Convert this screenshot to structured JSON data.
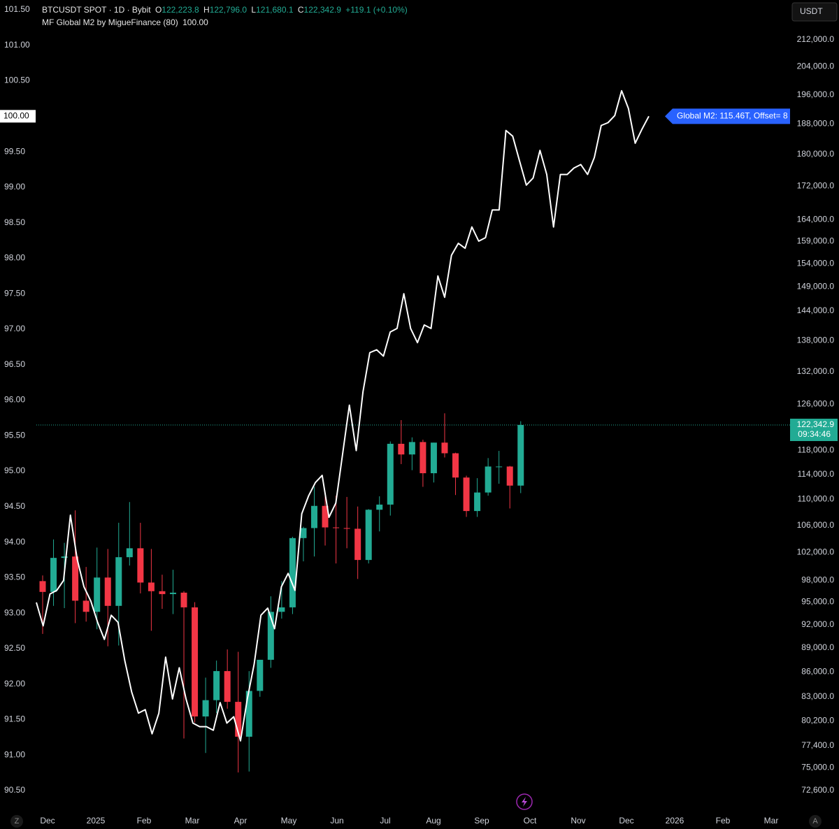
{
  "header": {
    "symbol": "BTCUSDT SPOT · 1D · Bybit",
    "o_key": "O",
    "o": "122,223.8",
    "h_key": "H",
    "h": "122,796.0",
    "l_key": "L",
    "l": "121,680.1",
    "c_key": "C",
    "c": "122,342.9",
    "change": "+119.1 (+0.10%)",
    "currency": "USDT",
    "countdown": "09:34:46",
    "callout": "Global M2: 115.46T, Offset= 8",
    "left_button": "Z",
    "right_button": "A"
  },
  "chart_data": {
    "type": "candlestick",
    "last_value_label": "100.00",
    "last_price_label": "122,342.9",
    "xticks": [
      "Dec",
      "2025",
      "Feb",
      "Mar",
      "Apr",
      "May",
      "Jun",
      "Jul",
      "Aug",
      "Sep",
      "Oct",
      "Nov",
      "Dec",
      "2026",
      "Feb",
      "Mar"
    ],
    "candles": {
      "up_color": "#22ab94",
      "down_color": "#f23645",
      "open": [
        97900,
        96400,
        101200,
        101400,
        95200,
        93700,
        98400,
        94500,
        101300,
        102600,
        97700,
        96500,
        96100,
        96300,
        94300,
        80700,
        82600,
        86100,
        82400,
        78400,
        83700,
        87500,
        93700,
        94300,
        104100,
        105600,
        109000,
        105700,
        105600,
        105500,
        100900,
        108400,
        109200,
        119100,
        117300,
        119400,
        114200,
        119300,
        117500,
        113500,
        108200,
        111100,
        115300,
        115300,
        112200
      ],
      "high": [
        98700,
        103900,
        103400,
        108300,
        99900,
        102700,
        102500,
        106400,
        109600,
        106400,
        102500,
        98800,
        99500,
        96500,
        95000,
        85300,
        87400,
        88800,
        88500,
        86100,
        87500,
        95800,
        97900,
        104300,
        105800,
        112000,
        110700,
        110600,
        110400,
        108900,
        108500,
        110500,
        119500,
        123200,
        120200,
        119800,
        119300,
        124400,
        117600,
        113800,
        113400,
        116700,
        117900,
        115400,
        123000
      ],
      "low": [
        90800,
        94500,
        94200,
        92200,
        92400,
        91400,
        89200,
        89300,
        100100,
        96200,
        91200,
        94100,
        93400,
        78200,
        80000,
        76600,
        81100,
        81600,
        74500,
        74600,
        83000,
        86500,
        92800,
        93400,
        100700,
        101400,
        103000,
        100400,
        102600,
        98200,
        100400,
        105100,
        107500,
        115700,
        114700,
        112000,
        112700,
        116800,
        110700,
        107300,
        107300,
        110600,
        112500,
        108600,
        111000
      ],
      "close": [
        96400,
        101200,
        101400,
        95200,
        93700,
        98400,
        94500,
        101300,
        102600,
        97700,
        96500,
        96100,
        96300,
        94300,
        80700,
        82600,
        86100,
        82400,
        78400,
        83700,
        87500,
        93700,
        94300,
        104100,
        105600,
        109000,
        105700,
        105600,
        105500,
        100900,
        108400,
        109200,
        119100,
        117300,
        119400,
        114200,
        119300,
        117500,
        113500,
        108200,
        111100,
        115300,
        115300,
        112200,
        122342.9
      ]
    },
    "series": [
      {
        "name": "MF Global M2 by MigueFinance (80)",
        "color": "#ffffff",
        "axis": "y",
        "values": [
          93.15,
          92.82,
          93.27,
          93.32,
          93.46,
          94.38,
          93.76,
          93.37,
          93.17,
          92.87,
          92.63,
          92.97,
          92.87,
          92.33,
          91.89,
          91.59,
          91.64,
          91.3,
          91.59,
          92.38,
          91.79,
          92.23,
          91.79,
          91.45,
          91.4,
          91.4,
          91.35,
          91.74,
          91.45,
          91.54,
          91.2,
          91.79,
          92.28,
          92.97,
          93.07,
          92.78,
          93.37,
          93.56,
          93.32,
          94.4,
          94.65,
          94.84,
          94.94,
          94.35,
          94.55,
          95.24,
          95.93,
          95.29,
          96.12,
          96.67,
          96.71,
          96.62,
          96.96,
          97.01,
          97.5,
          97.01,
          96.81,
          97.06,
          97.01,
          97.75,
          97.45,
          98.04,
          98.21,
          98.14,
          98.44,
          98.24,
          98.29,
          98.68,
          98.68,
          99.8,
          99.72,
          99.37,
          99.03,
          99.13,
          99.52,
          99.18,
          98.44,
          99.18,
          99.18,
          99.27,
          99.32,
          99.18,
          99.42,
          99.87,
          99.91,
          100.01,
          100.36,
          100.11,
          99.62,
          99.82,
          100.0
        ]
      }
    ],
    "ylim": [
      90.5,
      101.5
    ],
    "yticks": [
      {
        "value": 90.5,
        "label": "90.50"
      },
      {
        "value": 91,
        "label": "91.00"
      },
      {
        "value": 91.5,
        "label": "91.50"
      },
      {
        "value": 92,
        "label": "92.00"
      },
      {
        "value": 92.5,
        "label": "92.50"
      },
      {
        "value": 93,
        "label": "93.00"
      },
      {
        "value": 93.5,
        "label": "93.50"
      },
      {
        "value": 94,
        "label": "94.00"
      },
      {
        "value": 94.5,
        "label": "94.50"
      },
      {
        "value": 95,
        "label": "95.00"
      },
      {
        "value": 95.5,
        "label": "95.50"
      },
      {
        "value": 96,
        "label": "96.00"
      },
      {
        "value": 96.5,
        "label": "96.50"
      },
      {
        "value": 97,
        "label": "97.00"
      },
      {
        "value": 97.5,
        "label": "97.50"
      },
      {
        "value": 98,
        "label": "98.00"
      },
      {
        "value": 98.5,
        "label": "98.50"
      },
      {
        "value": 99,
        "label": "99.00"
      },
      {
        "value": 99.5,
        "label": "99.50"
      },
      {
        "value": 100.5,
        "label": "100.50"
      },
      {
        "value": 101,
        "label": "101.00"
      },
      {
        "value": 101.5,
        "label": "101.50"
      }
    ],
    "y2lim": [
      72600,
      221300
    ],
    "y2log": true,
    "y2ticks": [
      {
        "value": 212000,
        "label": "212,000.0"
      },
      {
        "value": 204000,
        "label": "204,000.0"
      },
      {
        "value": 196000,
        "label": "196,000.0"
      },
      {
        "value": 188000,
        "label": "188,000.0"
      },
      {
        "value": 180000,
        "label": "180,000.0"
      },
      {
        "value": 172000,
        "label": "172,000.0"
      },
      {
        "value": 164000,
        "label": "164,000.0"
      },
      {
        "value": 159000,
        "label": "159,000.0"
      },
      {
        "value": 154000,
        "label": "154,000.0"
      },
      {
        "value": 149000,
        "label": "149,000.0"
      },
      {
        "value": 144000,
        "label": "144,000.0"
      },
      {
        "value": 138000,
        "label": "138,000.0"
      },
      {
        "value": 132000,
        "label": "132,000.0"
      },
      {
        "value": 126000,
        "label": "126,000.0"
      },
      {
        "value": 118000,
        "label": "118,000.0"
      },
      {
        "value": 114000,
        "label": "114,000.0"
      },
      {
        "value": 110000,
        "label": "110,000.0"
      },
      {
        "value": 106000,
        "label": "106,000.0"
      },
      {
        "value": 102000,
        "label": "102,000.0"
      },
      {
        "value": 98000,
        "label": "98,000.0"
      },
      {
        "value": 95000,
        "label": "95,000.0"
      },
      {
        "value": 92000,
        "label": "92,000.0"
      },
      {
        "value": 89000,
        "label": "89,000.0"
      },
      {
        "value": 86000,
        "label": "86,000.0"
      },
      {
        "value": 83000,
        "label": "83,000.0"
      },
      {
        "value": 80200,
        "label": "80,200.0"
      },
      {
        "value": 77400,
        "label": "77,400.0"
      },
      {
        "value": 75000,
        "label": "75,000.0"
      },
      {
        "value": 72600,
        "label": "72,600.0"
      }
    ]
  }
}
